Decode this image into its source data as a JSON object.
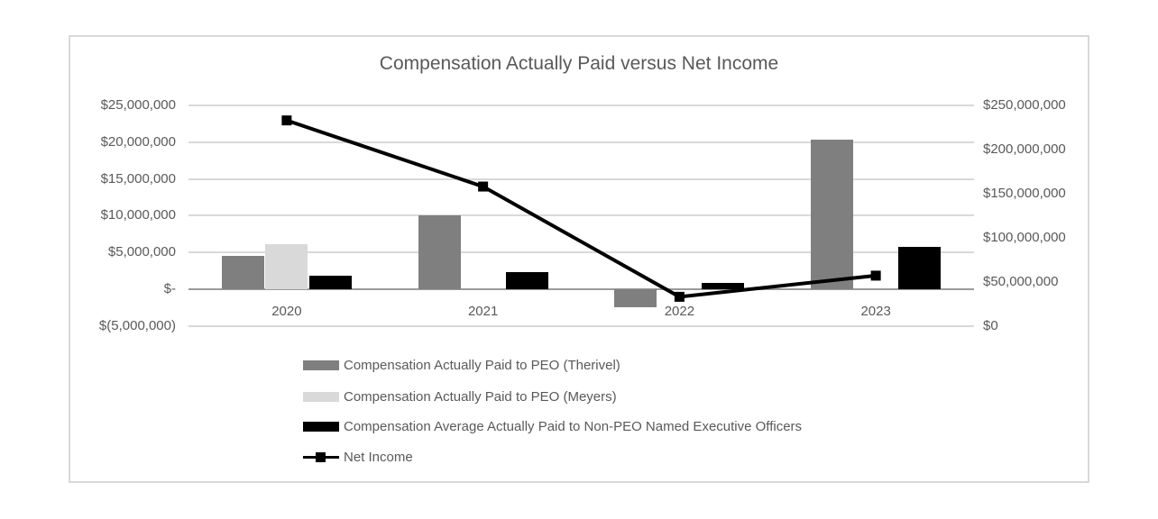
{
  "chart_data": {
    "type": "combo-bar-line",
    "title": "Compensation Actually Paid versus Net Income",
    "categories": [
      "2020",
      "2021",
      "2022",
      "2023"
    ],
    "series": [
      {
        "name": "Compensation Actually Paid to PEO (Therivel)",
        "type": "bar",
        "axis": "left",
        "color": "#7f7f7f",
        "values": [
          4500000,
          10000000,
          -2500000,
          20400000
        ]
      },
      {
        "name": "Compensation Actually Paid to PEO (Meyers)",
        "type": "bar",
        "axis": "left",
        "color": "#d9d9d9",
        "values": [
          6100000,
          null,
          null,
          null
        ]
      },
      {
        "name": "Compensation Average Actually Paid to Non-PEO Named Executive Officers",
        "type": "bar",
        "axis": "left",
        "color": "#000000",
        "values": [
          1800000,
          2300000,
          800000,
          5700000
        ]
      },
      {
        "name": "Net Income",
        "type": "line",
        "axis": "right",
        "color": "#000000",
        "marker": "square",
        "values": [
          233000000,
          158000000,
          33000000,
          57000000
        ]
      }
    ],
    "left_axis": {
      "min": -5000000,
      "max": 25000000,
      "step": 5000000,
      "tick_labels": [
        "$25,000,000",
        "$20,000,000",
        "$15,000,000",
        "$10,000,000",
        "$5,000,000",
        "$-",
        "$(5,000,000)"
      ]
    },
    "right_axis": {
      "min": 0,
      "max": 250000000,
      "step": 50000000,
      "tick_labels": [
        "$250,000,000",
        "$200,000,000",
        "$150,000,000",
        "$100,000,000",
        "$50,000,000",
        "$0"
      ]
    },
    "grid": true,
    "legend_position": "bottom",
    "style": {
      "text_color": "#595959",
      "gridline_color": "#d9d9d9",
      "zero_line_color": "#9a9a9a",
      "border_color": "#d9d9d9",
      "background": "#ffffff"
    }
  }
}
